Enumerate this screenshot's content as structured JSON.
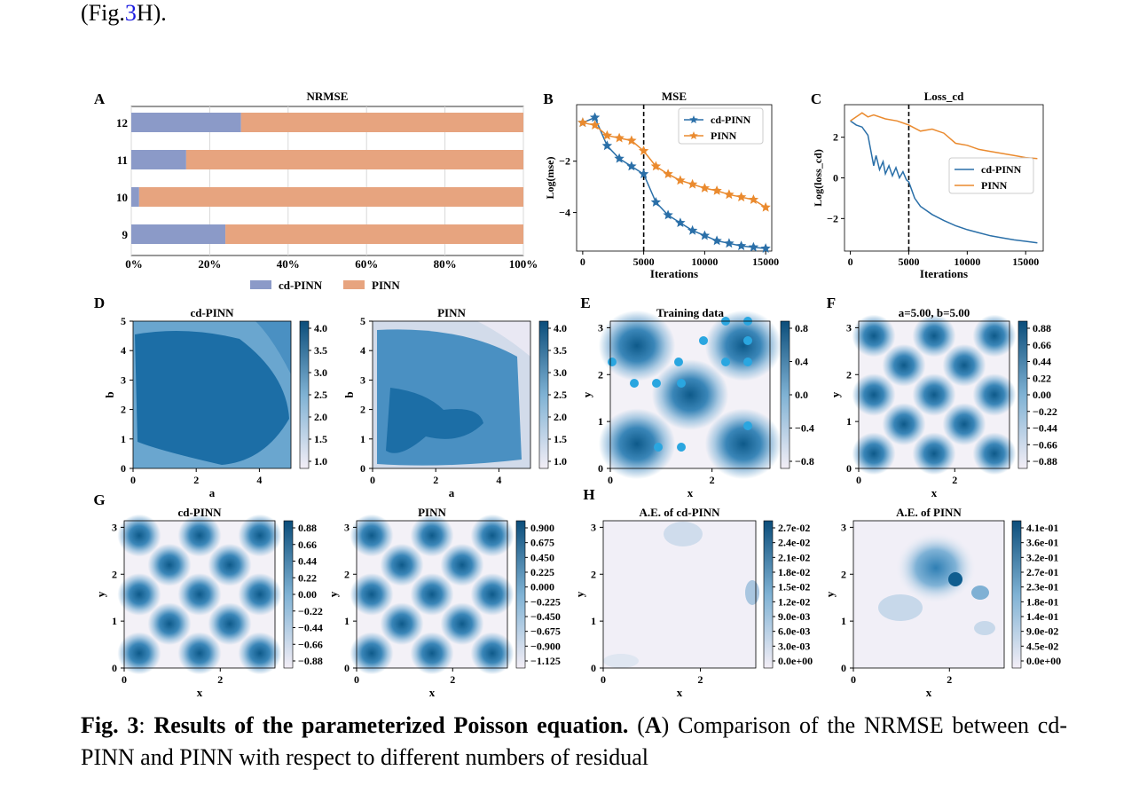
{
  "prev_text": {
    "open": "(Fig.",
    "ref": "3",
    "close": "H)."
  },
  "panels": [
    {
      "letter": "A"
    },
    {
      "letter": "B"
    },
    {
      "letter": "C"
    },
    {
      "letter": "D"
    },
    {
      "letter": "E"
    },
    {
      "letter": "F"
    },
    {
      "letter": "G"
    },
    {
      "letter": "H"
    }
  ],
  "chart_data": [
    {
      "id": "A",
      "type": "bar",
      "orientation": "horizontal",
      "stacked": true,
      "title": "NRMSE",
      "categories": [
        "12",
        "11",
        "10",
        "9"
      ],
      "series": [
        {
          "name": "cd-PINN",
          "color": "#8b9ac8",
          "values": [
            28,
            14,
            2,
            24
          ]
        },
        {
          "name": "PINN",
          "color": "#e7a47f",
          "values": [
            72,
            86,
            98,
            76
          ]
        }
      ],
      "xticks": [
        "0%",
        "20%",
        "40%",
        "60%",
        "80%",
        "100%"
      ],
      "xlim": [
        0,
        100
      ],
      "legend": "bottom",
      "grid": true
    },
    {
      "id": "B",
      "type": "line",
      "title": "MSE",
      "xlabel": "Iterations",
      "ylabel": "Log(mse)",
      "xticks": [
        "0",
        "5000",
        "10000",
        "15000"
      ],
      "yticks": [
        "−2",
        "−4"
      ],
      "xlim": [
        -500,
        15500
      ],
      "ylim": [
        -5.5,
        0.2
      ],
      "vline": 5000,
      "legend": "top-right",
      "series": [
        {
          "name": "cd-PINN",
          "color": "#2a6fa8",
          "marker": "star",
          "x": [
            0,
            1000,
            2000,
            3000,
            4000,
            5000,
            6000,
            7000,
            8000,
            9000,
            10000,
            11000,
            12000,
            13000,
            14000,
            15000
          ],
          "y": [
            -0.5,
            -0.3,
            -1.4,
            -1.9,
            -2.2,
            -2.5,
            -3.6,
            -4.1,
            -4.4,
            -4.7,
            -4.9,
            -5.1,
            -5.2,
            -5.3,
            -5.35,
            -5.4
          ]
        },
        {
          "name": "PINN",
          "color": "#ea8a2e",
          "marker": "star",
          "x": [
            0,
            1000,
            2000,
            3000,
            4000,
            5000,
            6000,
            7000,
            8000,
            9000,
            10000,
            11000,
            12000,
            13000,
            14000,
            15000
          ],
          "y": [
            -0.5,
            -0.6,
            -1.0,
            -1.1,
            -1.2,
            -1.6,
            -2.2,
            -2.5,
            -2.75,
            -2.9,
            -3.05,
            -3.15,
            -3.3,
            -3.4,
            -3.5,
            -3.8
          ]
        }
      ]
    },
    {
      "id": "C",
      "type": "line",
      "title": "Loss_cd",
      "xlabel": "Iterations",
      "ylabel": "Log(loss_cd)",
      "xticks": [
        "0",
        "5000",
        "10000",
        "15000"
      ],
      "yticks": [
        "2",
        "0",
        "−2"
      ],
      "xlim": [
        -500,
        16500
      ],
      "ylim": [
        -3.6,
        3.6
      ],
      "vline": 5000,
      "legend": "center-right",
      "series": [
        {
          "name": "cd-PINN",
          "color": "#2a6fa8",
          "x": [
            0,
            500,
            1000,
            1500,
            2000,
            2200,
            2500,
            2800,
            3000,
            3300,
            3600,
            3900,
            4200,
            4500,
            4800,
            5000,
            5500,
            6000,
            7000,
            8000,
            9000,
            10000,
            11000,
            12000,
            13000,
            14000,
            15000,
            16000
          ],
          "y": [
            2.8,
            2.6,
            2.5,
            2.1,
            0.6,
            1.1,
            0.4,
            0.8,
            0.2,
            0.6,
            0.1,
            0.5,
            0.0,
            0.3,
            -0.1,
            -0.2,
            -1.0,
            -1.4,
            -1.8,
            -2.1,
            -2.35,
            -2.55,
            -2.7,
            -2.85,
            -2.95,
            -3.05,
            -3.12,
            -3.2
          ]
        },
        {
          "name": "PINN",
          "color": "#ea8a2e",
          "x": [
            0,
            500,
            1000,
            1500,
            2000,
            3000,
            4000,
            5000,
            6000,
            7000,
            8000,
            9000,
            10000,
            11000,
            12000,
            13000,
            14000,
            15000,
            16000
          ],
          "y": [
            2.8,
            3.0,
            3.2,
            3.0,
            3.1,
            2.9,
            2.8,
            2.6,
            2.3,
            2.4,
            2.2,
            1.7,
            1.6,
            1.4,
            1.3,
            1.2,
            1.1,
            1.0,
            0.95
          ]
        }
      ]
    },
    {
      "id": "D",
      "type": "heatmap",
      "subplots": [
        {
          "title": "cd-PINN",
          "xlabel": "a",
          "ylabel": "b",
          "xticks": [
            "0",
            "2",
            "4"
          ],
          "yticks": [
            "0",
            "1",
            "2",
            "3",
            "4",
            "5"
          ],
          "colorbar": [
            "4.0",
            "3.5",
            "3.0",
            "2.5",
            "2.0",
            "1.5",
            "1.0"
          ]
        },
        {
          "title": "PINN",
          "xlabel": "a",
          "ylabel": "b",
          "xticks": [
            "0",
            "2",
            "4"
          ],
          "yticks": [
            "0",
            "1",
            "2",
            "3",
            "4",
            "5"
          ],
          "colorbar": [
            "4.0",
            "3.5",
            "3.0",
            "2.5",
            "2.0",
            "1.5",
            "1.0"
          ]
        }
      ]
    },
    {
      "id": "E",
      "type": "heatmap",
      "subplots": [
        {
          "title": "Training data",
          "xlabel": "x",
          "ylabel": "y",
          "xticks": [
            "0",
            "2"
          ],
          "yticks": [
            "0",
            "1",
            "2",
            "3"
          ],
          "colorbar": [
            "0.8",
            "0.4",
            "0.0",
            "−0.4",
            "−0.8"
          ]
        }
      ]
    },
    {
      "id": "F",
      "type": "heatmap",
      "subplots": [
        {
          "title": "a=5.00, b=5.00",
          "xlabel": "x",
          "ylabel": "y",
          "xticks": [
            "0",
            "2"
          ],
          "yticks": [
            "0",
            "1",
            "2",
            "3"
          ],
          "colorbar": [
            "0.88",
            "0.66",
            "0.44",
            "0.22",
            "0.00",
            "−0.22",
            "−0.44",
            "−0.66",
            "−0.88"
          ]
        }
      ]
    },
    {
      "id": "G",
      "type": "heatmap",
      "subplots": [
        {
          "title": "cd-PINN",
          "xlabel": "x",
          "ylabel": "y",
          "xticks": [
            "0",
            "2"
          ],
          "yticks": [
            "0",
            "1",
            "2",
            "3"
          ],
          "colorbar": [
            "0.88",
            "0.66",
            "0.44",
            "0.22",
            "0.00",
            "−0.22",
            "−0.44",
            "−0.66",
            "−0.88"
          ]
        },
        {
          "title": "PINN",
          "xlabel": "x",
          "ylabel": "y",
          "xticks": [
            "0",
            "2"
          ],
          "yticks": [
            "0",
            "1",
            "2",
            "3"
          ],
          "colorbar": [
            "0.900",
            "0.675",
            "0.450",
            "0.225",
            "0.000",
            "−0.225",
            "−0.450",
            "−0.675",
            "−0.900",
            "−1.125"
          ]
        }
      ]
    },
    {
      "id": "H",
      "type": "heatmap",
      "subplots": [
        {
          "title": "A.E. of cd-PINN",
          "xlabel": "x",
          "ylabel": "y",
          "xticks": [
            "0",
            "2"
          ],
          "yticks": [
            "0",
            "1",
            "2",
            "3"
          ],
          "colorbar": [
            "2.7e-02",
            "2.4e-02",
            "2.1e-02",
            "1.8e-02",
            "1.5e-02",
            "1.2e-02",
            "9.0e-03",
            "6.0e-03",
            "3.0e-03",
            "0.0e+00"
          ]
        },
        {
          "title": "A.E. of PINN",
          "xlabel": "x",
          "ylabel": "y",
          "xticks": [
            "0",
            "2"
          ],
          "yticks": [
            "0",
            "1",
            "2",
            "3"
          ],
          "colorbar": [
            "4.1e-01",
            "3.6e-01",
            "3.2e-01",
            "2.7e-01",
            "2.3e-01",
            "1.8e-01",
            "1.4e-01",
            "9.0e-02",
            "4.5e-02",
            "0.0e+00"
          ]
        }
      ]
    }
  ],
  "caption": {
    "label": "Fig. 3",
    "sep": ": ",
    "title": "Results of the parameterized Poisson equation.",
    "p1": " (",
    "panel": "A",
    "body": ") Comparison of the NRMSE between cd-PINN and PINN with respect to different numbers of residual"
  }
}
